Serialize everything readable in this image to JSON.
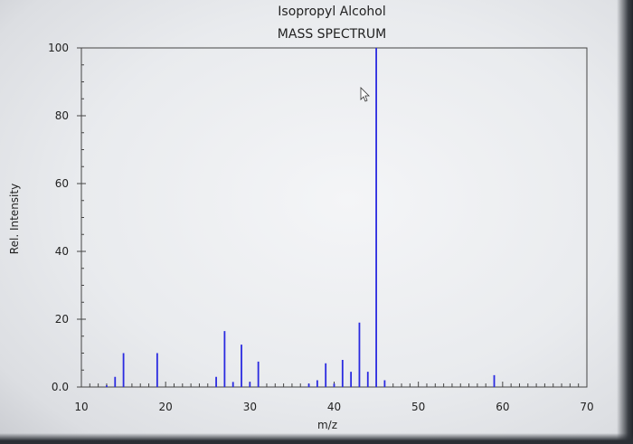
{
  "chart_data": {
    "type": "bar",
    "title": "Isopropyl Alcohol",
    "subtitle": "MASS SPECTRUM",
    "xlabel": "m/z",
    "ylabel": "Rel. Intensity",
    "xlim": [
      10,
      70
    ],
    "ylim": [
      0,
      100
    ],
    "xticks": [
      "10",
      "20",
      "30",
      "40",
      "50",
      "60",
      "70"
    ],
    "yticks": [
      "0.0",
      "20",
      "40",
      "60",
      "80",
      "100"
    ],
    "x": [
      13,
      14,
      15,
      19,
      26,
      27,
      28,
      29,
      30,
      31,
      37,
      38,
      39,
      40,
      41,
      42,
      43,
      44,
      45,
      46,
      59
    ],
    "values": [
      0.5,
      3,
      10,
      10,
      3,
      16.5,
      1.5,
      12.5,
      1.5,
      7.5,
      1,
      2,
      7,
      1,
      8,
      4.5,
      19,
      4.5,
      100,
      2,
      3.5
    ],
    "grid": false,
    "bar_color": "#2a2ae0"
  }
}
